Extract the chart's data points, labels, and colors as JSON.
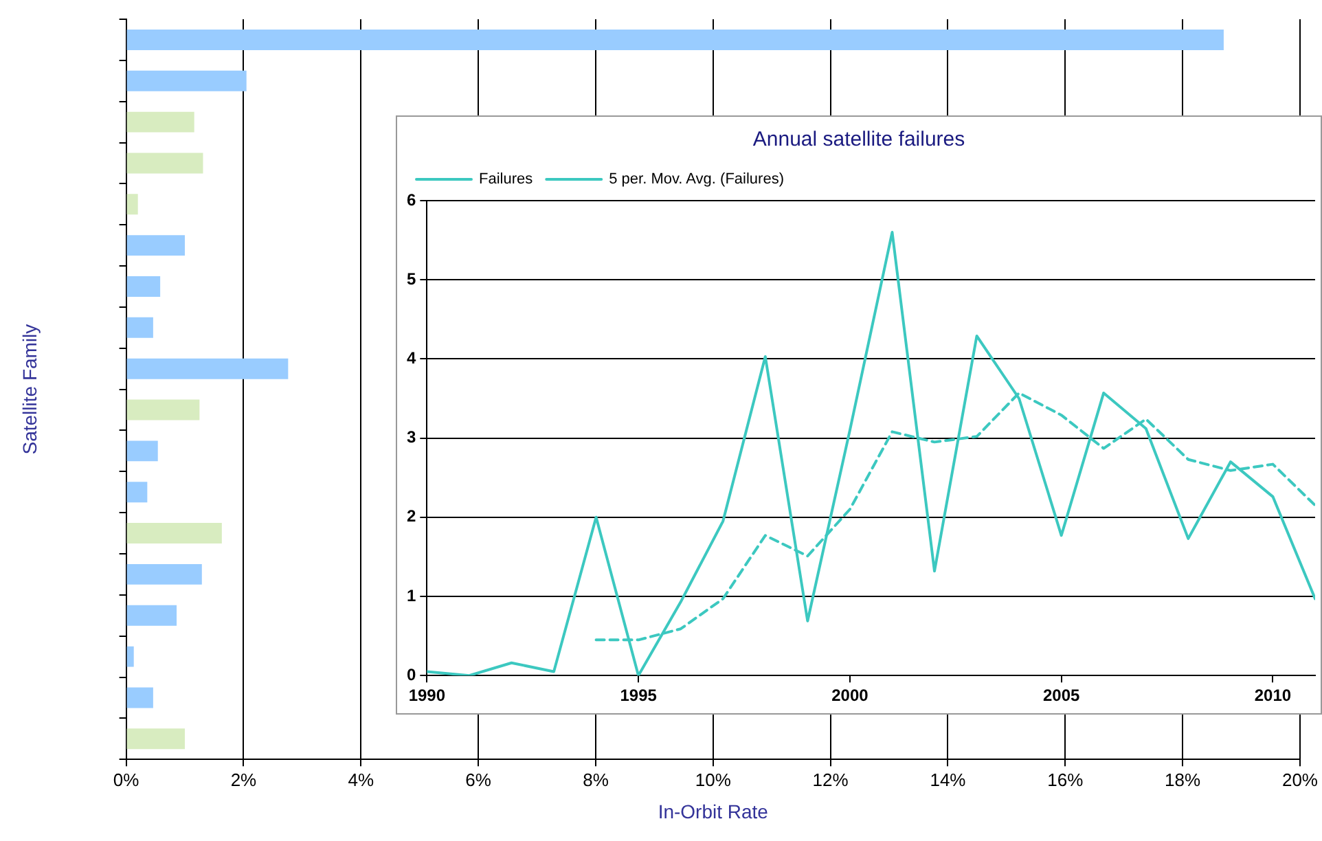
{
  "chart_data": [
    {
      "type": "bar",
      "orientation": "horizontal",
      "xlabel": "In-Orbit Rate",
      "ylabel": "Satellite Family",
      "categories": [
        null,
        null,
        null,
        null,
        null,
        null,
        null,
        null,
        null,
        null,
        null,
        null,
        null,
        null,
        null,
        null,
        null,
        null
      ],
      "values": [
        18.7,
        2.05,
        1.16,
        1.31,
        0.2,
        1.0,
        0.58,
        0.46,
        2.76,
        1.25,
        0.54,
        0.36,
        1.63,
        1.29,
        0.86,
        0.13,
        0.46,
        1.0
      ],
      "colors": [
        "#99ccff",
        "#99ccff",
        "#d8ecc0",
        "#d8ecc0",
        "#d8ecc0",
        "#99ccff",
        "#99ccff",
        "#99ccff",
        "#99ccff",
        "#d8ecc0",
        "#99ccff",
        "#99ccff",
        "#d8ecc0",
        "#99ccff",
        "#99ccff",
        "#99ccff",
        "#99ccff",
        "#d8ecc0"
      ],
      "xlim": [
        0,
        20
      ],
      "xticks": [
        {
          "value": 0,
          "label": "0%"
        },
        {
          "value": 2,
          "label": "2%"
        },
        {
          "value": 4,
          "label": "4%"
        },
        {
          "value": 6,
          "label": "6%"
        },
        {
          "value": 8,
          "label": "8%"
        },
        {
          "value": 10,
          "label": "10%"
        },
        {
          "value": 12,
          "label": "12%"
        },
        {
          "value": 14,
          "label": "14%"
        },
        {
          "value": 16,
          "label": "16%"
        },
        {
          "value": 18,
          "label": "18%"
        },
        {
          "value": 20,
          "label": "20%"
        }
      ],
      "grid": "x",
      "legend": false
    },
    {
      "type": "line",
      "title": "Annual satellite failures",
      "x": [
        1990,
        1991,
        1992,
        1993,
        1994,
        1995,
        1996,
        1997,
        1998,
        1999,
        2000,
        2001,
        2002,
        2003,
        2004,
        2005,
        2006,
        2007,
        2008,
        2009,
        2010,
        2011
      ],
      "series": [
        {
          "name": "Failures",
          "color": "#3cc8c0",
          "line_style": "solid",
          "values": [
            0.05,
            0,
            0.16,
            0.05,
            2.0,
            0,
            0.93,
            1.95,
            4.03,
            0.69,
            3.1,
            5.6,
            1.32,
            4.29,
            3.5,
            1.77,
            3.57,
            3.12,
            1.73,
            2.7,
            2.26,
            0.97
          ]
        },
        {
          "name": "5 per. Mov. Avg. (Failures)",
          "color": "#3cc8c0",
          "line_style": "dashed",
          "values": [
            null,
            null,
            null,
            null,
            0.45,
            0.45,
            0.59,
            0.97,
            1.77,
            1.51,
            2.1,
            3.08,
            2.95,
            3.02,
            3.57,
            3.29,
            2.87,
            3.24,
            2.73,
            2.59,
            2.67,
            2.15
          ]
        }
      ],
      "xlim": [
        1990,
        2011
      ],
      "xticks": [
        1990,
        1995,
        2000,
        2005,
        2010
      ],
      "ylim": [
        0,
        6
      ],
      "yticks": [
        0,
        1,
        2,
        3,
        4,
        5,
        6
      ],
      "grid": "y",
      "legend": "top left",
      "marker": "none"
    }
  ]
}
